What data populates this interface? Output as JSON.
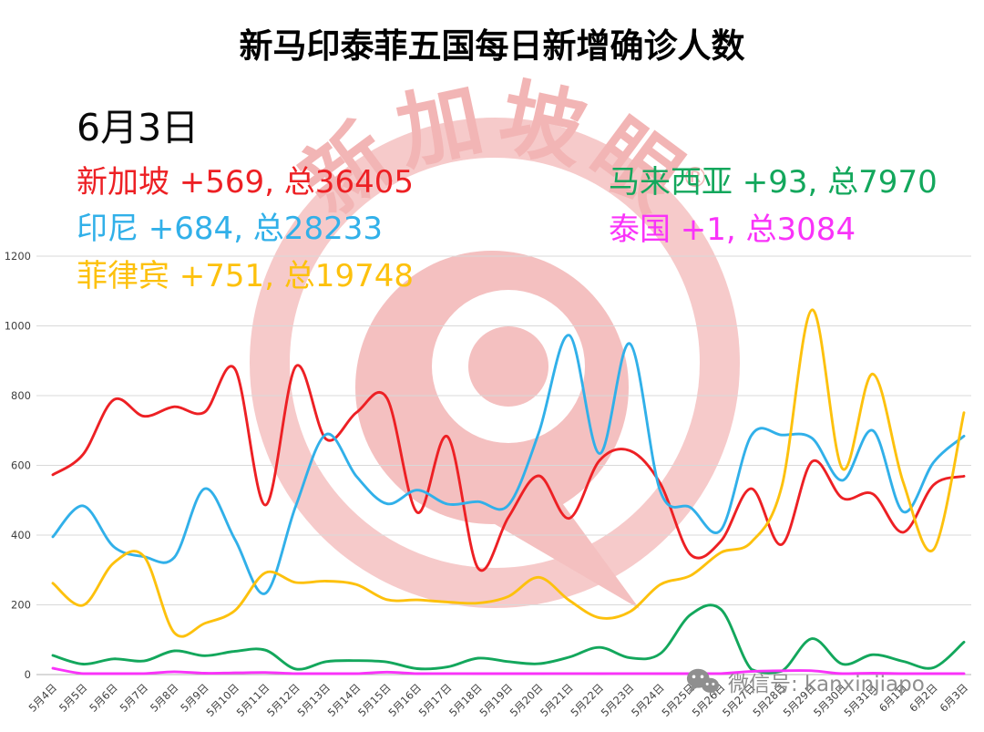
{
  "title": "新马印泰菲五国每日新增确诊人数",
  "date_label": "6月3日",
  "legend": {
    "singapore": {
      "text": "新加坡 +569, 总36405",
      "color": "#ed2024"
    },
    "indonesia": {
      "text": "印尼 +684, 总28233",
      "color": "#31b0e9"
    },
    "philippines": {
      "text": "菲律宾 +751, 总19748",
      "color": "#fdc10d"
    },
    "malaysia": {
      "text": "马来西亚 +93, 总7970",
      "color": "#13a75c"
    },
    "thailand": {
      "text": "泰国 +1, 总3084",
      "color": "#f933f9"
    }
  },
  "watermark": {
    "brand": "新加坡眼",
    "registered_mark": "®",
    "color": "#f3bcbc"
  },
  "footer": {
    "wechat_label": "微信号: kanxinjiapo"
  },
  "chart_data": {
    "type": "line",
    "title": "新马印泰菲五国每日新增确诊人数",
    "categories": [
      "5月4日",
      "5月5日",
      "5月6日",
      "5月7日",
      "5月8日",
      "5月9日",
      "5月10日",
      "5月11日",
      "5月12日",
      "5月13日",
      "5月14日",
      "5月15日",
      "5月16日",
      "5月17日",
      "5月18日",
      "5月19日",
      "5月20日",
      "5月21日",
      "5月22日",
      "5月23日",
      "5月24日",
      "5月25日",
      "5月26日",
      "5月27日",
      "5月28日",
      "5月29日",
      "5月30日",
      "5月31日",
      "6月1日",
      "6月2日",
      "6月3日"
    ],
    "series": [
      {
        "name": "新加坡",
        "color": "#ed2024",
        "values": [
          573,
          632,
          788,
          741,
          768,
          753,
          876,
          486,
          884,
          675,
          752,
          793,
          465,
          682,
          305,
          451,
          570,
          448,
          614,
          642,
          548,
          344,
          383,
          533,
          373,
          611,
          506,
          518,
          408,
          544,
          569
        ]
      },
      {
        "name": "印尼",
        "color": "#31b0e9",
        "values": [
          395,
          484,
          367,
          338,
          336,
          533,
          387,
          233,
          484,
          689,
          568,
          490,
          529,
          489,
          496,
          486,
          693,
          973,
          634,
          949,
          526,
          479,
          415,
          686,
          687,
          678,
          557,
          700,
          467,
          609,
          684
        ]
      },
      {
        "name": "菲律宾",
        "color": "#fdc10d",
        "values": [
          262,
          199,
          320,
          339,
          120,
          147,
          184,
          292,
          264,
          268,
          258,
          215,
          214,
          208,
          205,
          224,
          279,
          213,
          163,
          180,
          258,
          284,
          350,
          380,
          539,
          1046,
          590,
          862,
          552,
          359,
          751
        ]
      },
      {
        "name": "马来西亚",
        "color": "#13a75c",
        "values": [
          55,
          30,
          45,
          39,
          68,
          54,
          67,
          70,
          16,
          37,
          40,
          36,
          17,
          22,
          47,
          37,
          31,
          50,
          78,
          48,
          60,
          172,
          187,
          15,
          10,
          103,
          30,
          57,
          38,
          20,
          93
        ]
      },
      {
        "name": "泰国",
        "color": "#f933f9",
        "values": [
          18,
          1,
          1,
          3,
          8,
          4,
          5,
          6,
          2,
          0,
          1,
          7,
          0,
          3,
          2,
          1,
          1,
          3,
          0,
          3,
          0,
          2,
          3,
          9,
          11,
          11,
          1,
          4,
          1,
          1,
          1
        ]
      }
    ],
    "ylim": [
      0,
      1200
    ],
    "ytick_interval": 200,
    "grid": true,
    "smooth": true,
    "legend_position": "none"
  }
}
